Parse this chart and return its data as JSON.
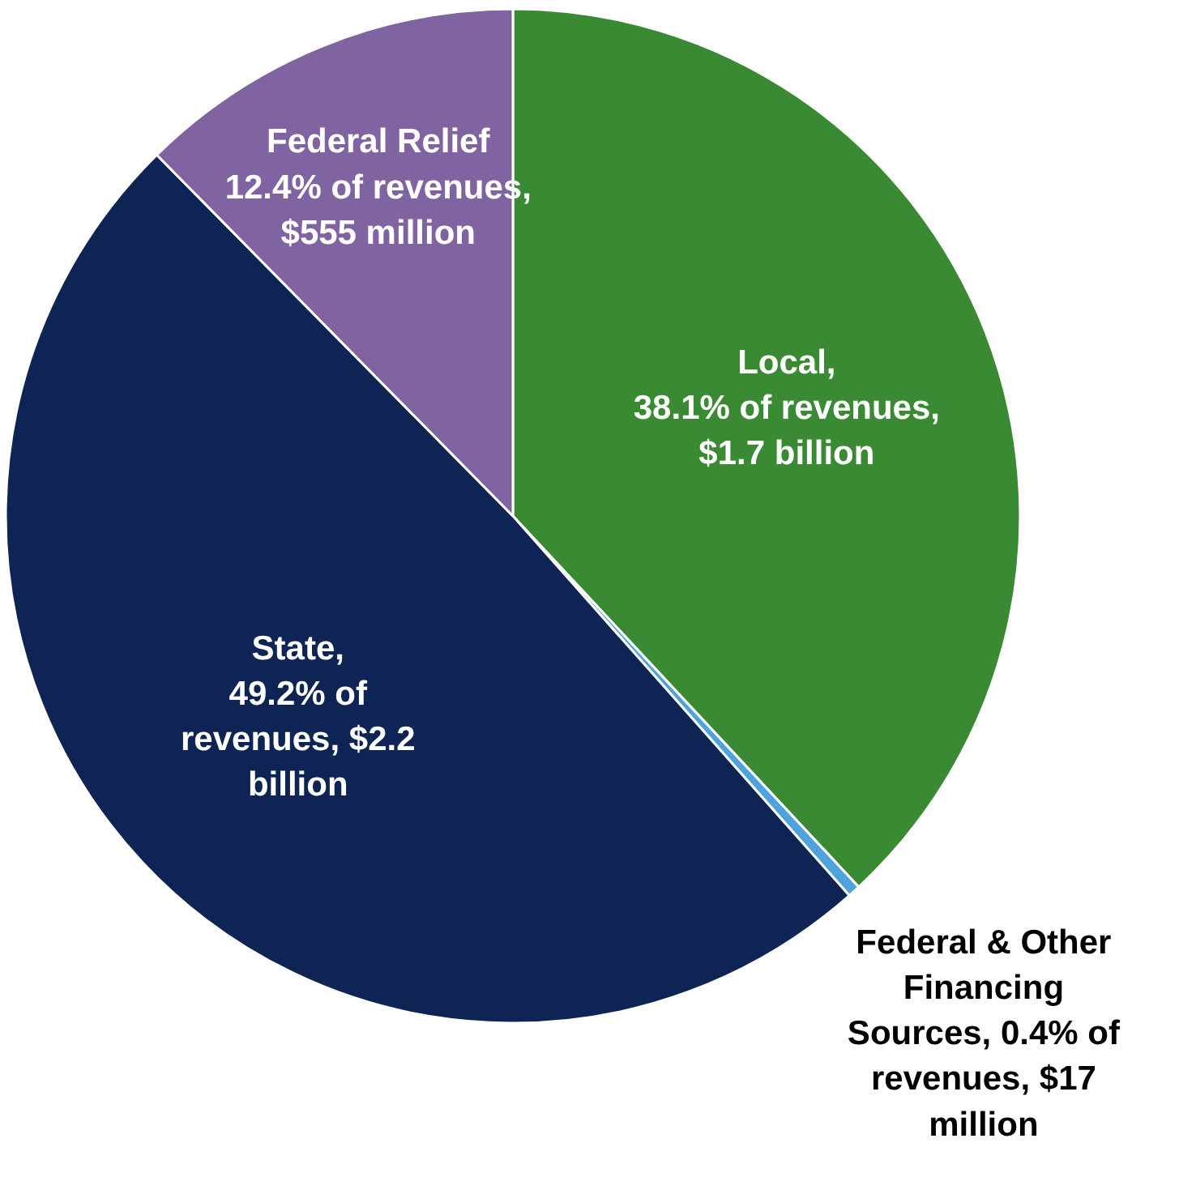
{
  "chart_data": {
    "type": "pie",
    "categories": [
      "Local",
      "Federal & Other\nFinancing\nSources",
      "State",
      "Federal Relief"
    ],
    "value_labels": [
      ",\n38.1% of revenues,\n$1.7 billion",
      ", 0.4% of\nrevenues, $17\nmillion",
      ",\n49.2% of\nrevenues, $2.2\nbillion",
      "\n12.4% of revenues,\n$555 million"
    ],
    "values": [
      38.1,
      0.4,
      49.2,
      12.4
    ],
    "colors": [
      "#3a8a34",
      "#4fa3dc",
      "#0e2454",
      "#8064a2"
    ]
  }
}
